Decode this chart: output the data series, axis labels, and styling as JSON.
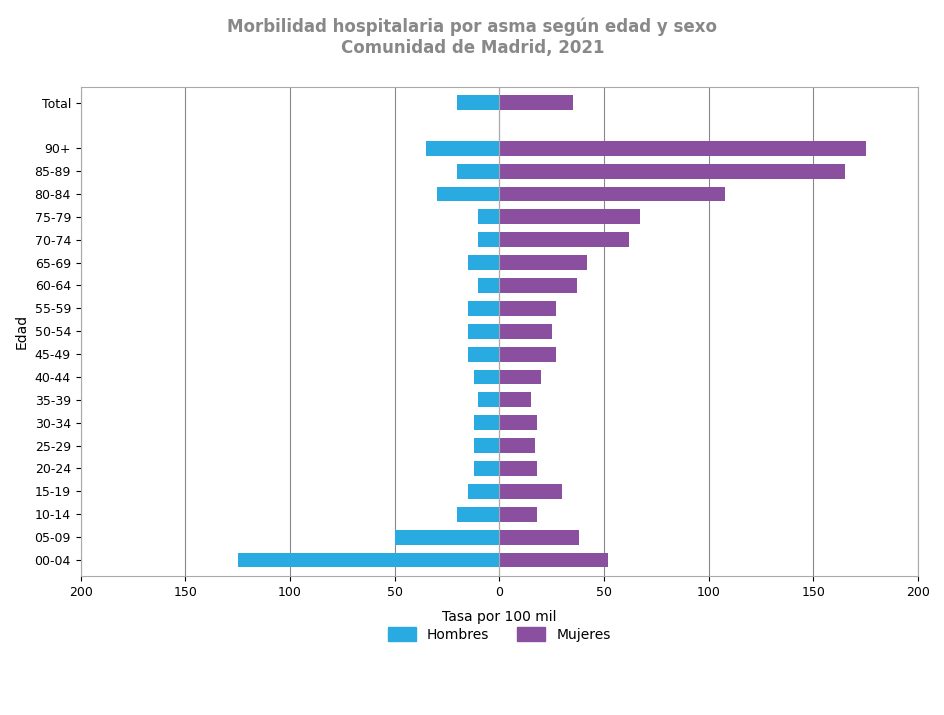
{
  "title_line1": "Morbilidad hospitalaria por asma según edad y sexo",
  "title_line2": "Comunidad de Madrid, 2021",
  "ylabel": "Edad",
  "xlabel": "Tasa por 100 mil",
  "categories": [
    "00-04",
    "05-09",
    "10-14",
    "15-19",
    "20-24",
    "25-29",
    "30-34",
    "35-39",
    "40-44",
    "45-49",
    "50-54",
    "55-59",
    "60-64",
    "65-69",
    "70-74",
    "75-79",
    "80-84",
    "85-89",
    "90+",
    "Total"
  ],
  "hombres": [
    125,
    50,
    20,
    15,
    12,
    12,
    12,
    10,
    12,
    15,
    15,
    15,
    10,
    15,
    10,
    10,
    30,
    20,
    35,
    20
  ],
  "mujeres": [
    52,
    38,
    18,
    30,
    18,
    17,
    18,
    15,
    20,
    27,
    25,
    27,
    37,
    42,
    62,
    67,
    108,
    165,
    175,
    35
  ],
  "color_hombres": "#29ABE2",
  "color_mujeres": "#8B4FA0",
  "xlim": 200,
  "background_color": "#FFFFFF",
  "grid_color": "#888888",
  "title_color": "#888888",
  "total_gap": true
}
